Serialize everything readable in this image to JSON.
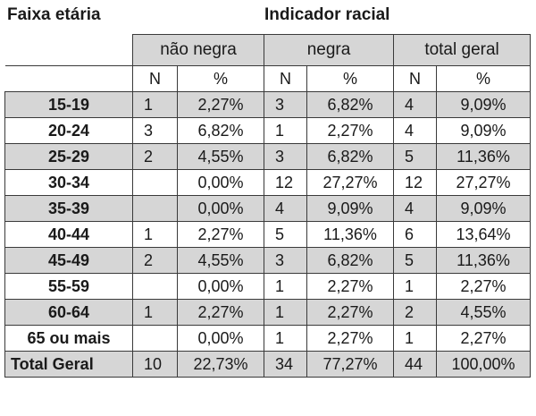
{
  "headers": {
    "row_header": "Faixa etária",
    "group_header": "Indicador racial",
    "groups": [
      "não negra",
      "negra",
      "total geral"
    ],
    "n_label": "N",
    "pct_label": "%"
  },
  "rows": [
    {
      "label": "15-19",
      "nn_n": "1",
      "nn_p": "2,27%",
      "ng_n": "3",
      "ng_p": "6,82%",
      "tg_n": "4",
      "tg_p": "9,09%"
    },
    {
      "label": "20-24",
      "nn_n": "3",
      "nn_p": "6,82%",
      "ng_n": "1",
      "ng_p": "2,27%",
      "tg_n": "4",
      "tg_p": "9,09%"
    },
    {
      "label": "25-29",
      "nn_n": "2",
      "nn_p": "4,55%",
      "ng_n": "3",
      "ng_p": "6,82%",
      "tg_n": "5",
      "tg_p": "11,36%"
    },
    {
      "label": "30-34",
      "nn_n": "",
      "nn_p": "0,00%",
      "ng_n": "12",
      "ng_p": "27,27%",
      "tg_n": "12",
      "tg_p": "27,27%"
    },
    {
      "label": "35-39",
      "nn_n": "",
      "nn_p": "0,00%",
      "ng_n": "4",
      "ng_p": "9,09%",
      "tg_n": "4",
      "tg_p": "9,09%"
    },
    {
      "label": "40-44",
      "nn_n": "1",
      "nn_p": "2,27%",
      "ng_n": "5",
      "ng_p": "11,36%",
      "tg_n": "6",
      "tg_p": "13,64%"
    },
    {
      "label": "45-49",
      "nn_n": "2",
      "nn_p": "4,55%",
      "ng_n": "3",
      "ng_p": "6,82%",
      "tg_n": "5",
      "tg_p": "11,36%"
    },
    {
      "label": "55-59",
      "nn_n": "",
      "nn_p": "0,00%",
      "ng_n": "1",
      "ng_p": "2,27%",
      "tg_n": "1",
      "tg_p": "2,27%"
    },
    {
      "label": "60-64",
      "nn_n": "1",
      "nn_p": "2,27%",
      "ng_n": "1",
      "ng_p": "2,27%",
      "tg_n": "2",
      "tg_p": "4,55%"
    },
    {
      "label": "65 ou mais",
      "nn_n": "",
      "nn_p": "0,00%",
      "ng_n": "1",
      "ng_p": "2,27%",
      "tg_n": "1",
      "tg_p": "2,27%"
    }
  ],
  "total": {
    "label": "Total Geral",
    "nn_n": "10",
    "nn_p": "22,73%",
    "ng_n": "34",
    "ng_p": "77,27%",
    "tg_n": "44",
    "tg_p": "100,00%"
  },
  "colors": {
    "shade": "#d6d6d6",
    "border": "#3a3a3a"
  }
}
